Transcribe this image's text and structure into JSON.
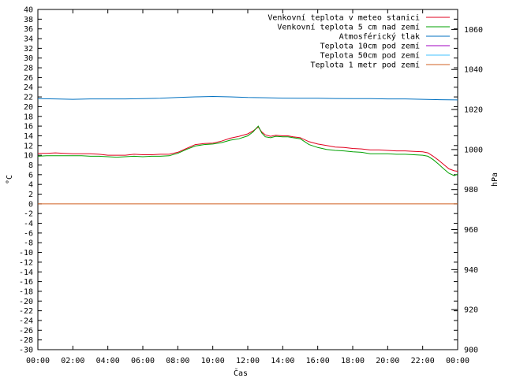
{
  "chart_data": {
    "type": "line",
    "xlabel": "Čas",
    "ylabel": "°C",
    "y2label": "hPa",
    "x_ticks": [
      "00:00",
      "02:00",
      "04:00",
      "06:00",
      "08:00",
      "10:00",
      "12:00",
      "14:00",
      "16:00",
      "18:00",
      "20:00",
      "22:00",
      "00:00"
    ],
    "x_range_hours": [
      0,
      24
    ],
    "ylim": [
      -30,
      40
    ],
    "y_step": 2,
    "y2lim": [
      900,
      1070
    ],
    "y2_ticks": [
      900,
      920,
      940,
      960,
      980,
      1000,
      1020,
      1040,
      1060
    ],
    "grid": false,
    "legend_position": "top-right",
    "series": [
      {
        "name": "Venkovní teplota v meteo stanici",
        "color": "#e0001e",
        "axis": "left",
        "x": [
          0,
          0.5,
          1,
          1.5,
          2,
          2.5,
          3,
          3.5,
          4,
          4.5,
          5,
          5.5,
          6,
          6.5,
          7,
          7.5,
          8,
          8.5,
          9,
          9.5,
          10,
          10.5,
          11,
          11.5,
          12,
          12.3,
          12.6,
          12.8,
          13,
          13.3,
          13.6,
          14,
          14.3,
          14.6,
          15,
          15.5,
          16,
          16.5,
          17,
          17.5,
          18,
          18.5,
          19,
          19.5,
          20,
          20.5,
          21,
          21.5,
          22,
          22.3,
          22.6,
          22.9,
          23.2,
          23.5,
          23.8,
          24
        ],
        "y": [
          10.4,
          10.4,
          10.5,
          10.4,
          10.3,
          10.3,
          10.3,
          10.2,
          10.0,
          10.0,
          10.0,
          10.2,
          10.1,
          10.1,
          10.2,
          10.2,
          10.6,
          11.4,
          12.2,
          12.4,
          12.5,
          12.9,
          13.5,
          13.9,
          14.4,
          15.0,
          15.8,
          14.8,
          14.2,
          13.9,
          14.1,
          14.0,
          14.0,
          13.8,
          13.6,
          12.8,
          12.3,
          12.0,
          11.7,
          11.6,
          11.4,
          11.3,
          11.1,
          11.1,
          11.0,
          10.9,
          10.9,
          10.8,
          10.7,
          10.5,
          9.8,
          9.0,
          8.1,
          7.2,
          6.8,
          6.7
        ]
      },
      {
        "name": "Venkovní teplota 5 cm nad zemí",
        "color": "#00a000",
        "axis": "left",
        "x": [
          0,
          0.5,
          1,
          1.5,
          2,
          2.5,
          3,
          3.5,
          4,
          4.5,
          5,
          5.5,
          6,
          6.5,
          7,
          7.5,
          8,
          8.5,
          9,
          9.5,
          10,
          10.5,
          11,
          11.5,
          12,
          12.3,
          12.6,
          12.8,
          13,
          13.3,
          13.6,
          14,
          14.3,
          14.6,
          15,
          15.5,
          16,
          16.5,
          17,
          17.5,
          18,
          18.5,
          19,
          19.5,
          20,
          20.5,
          21,
          21.5,
          22,
          22.3,
          22.6,
          22.9,
          23.2,
          23.5,
          23.8,
          24
        ],
        "y": [
          9.8,
          9.9,
          9.9,
          9.9,
          9.9,
          9.9,
          9.8,
          9.8,
          9.7,
          9.6,
          9.7,
          9.8,
          9.7,
          9.8,
          9.8,
          9.9,
          10.4,
          11.2,
          11.9,
          12.2,
          12.3,
          12.6,
          13.1,
          13.4,
          14.0,
          14.8,
          16.0,
          14.6,
          13.8,
          13.6,
          13.9,
          13.8,
          13.8,
          13.6,
          13.4,
          12.2,
          11.6,
          11.2,
          11.0,
          10.9,
          10.7,
          10.6,
          10.3,
          10.3,
          10.3,
          10.2,
          10.2,
          10.1,
          10.0,
          9.8,
          9.1,
          8.2,
          7.2,
          6.3,
          5.8,
          6.1
        ]
      },
      {
        "name": "Atmosférický tlak",
        "color": "#0070c0",
        "axis": "right",
        "x": [
          0,
          1,
          2,
          3,
          4,
          5,
          6,
          7,
          8,
          9,
          10,
          11,
          12,
          13,
          14,
          15,
          16,
          17,
          18,
          19,
          20,
          21,
          22,
          23,
          24
        ],
        "y": [
          1025.4,
          1025.3,
          1025.1,
          1025.3,
          1025.3,
          1025.3,
          1025.4,
          1025.6,
          1026.0,
          1026.3,
          1026.5,
          1026.3,
          1026.0,
          1025.9,
          1025.7,
          1025.6,
          1025.6,
          1025.5,
          1025.4,
          1025.4,
          1025.3,
          1025.3,
          1025.1,
          1024.9,
          1024.8
        ]
      },
      {
        "name": "Teplota 10cm pod zemí",
        "color": "#a000c0",
        "axis": "left",
        "x": [],
        "y": []
      },
      {
        "name": "Teplota 50cm pod zemí",
        "color": "#40c0ff",
        "axis": "left",
        "x": [],
        "y": []
      },
      {
        "name": "Teplota 1 metr pod zemí",
        "color": "#d06020",
        "axis": "left",
        "x": [
          0,
          24
        ],
        "y": [
          0,
          0
        ]
      }
    ]
  }
}
